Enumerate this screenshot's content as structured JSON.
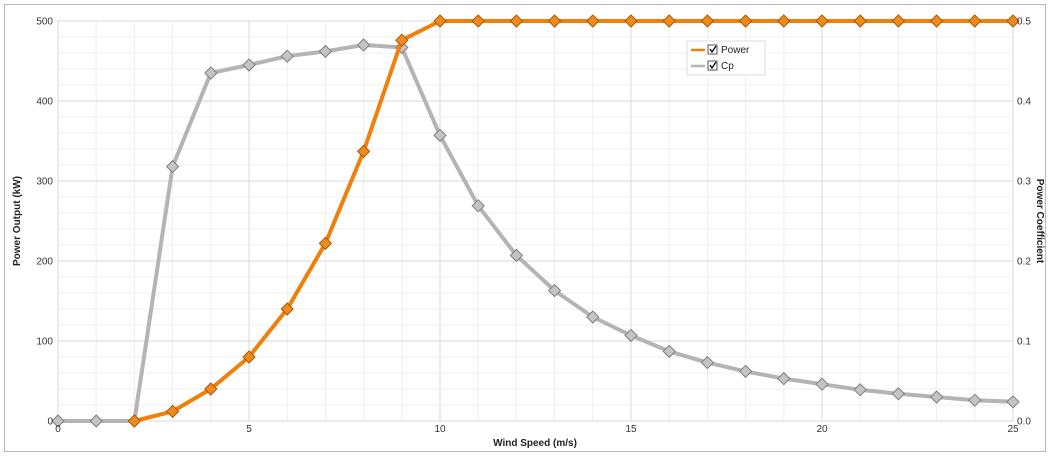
{
  "chart_data": {
    "type": "line",
    "xlabel": "Wind Speed (m/s)",
    "ylabel": "Power Output (kW)",
    "y2label": "Power Coefficient",
    "xlim": [
      0,
      25
    ],
    "ylim": [
      0,
      500
    ],
    "y2lim": [
      0,
      0.5
    ],
    "xticks": [
      "0",
      "5",
      "10",
      "15",
      "20",
      "25"
    ],
    "yticks": [
      "0",
      "100",
      "200",
      "300",
      "400",
      "500"
    ],
    "y2ticks": [
      "0.0",
      "0.1",
      "0.2",
      "0.3",
      "0.4",
      "0.5"
    ],
    "grid": true,
    "legend_position": "top-right",
    "series": [
      {
        "name": "Power",
        "axis": "left",
        "color": "#f0800a",
        "checked": true,
        "x": [
          2,
          3,
          4,
          5,
          6,
          7,
          8,
          9,
          10,
          11,
          12,
          13,
          14,
          15,
          16,
          17,
          18,
          19,
          20,
          21,
          22,
          23,
          24,
          25
        ],
        "values": [
          0,
          12,
          40,
          80,
          140,
          222,
          337,
          476,
          500,
          500,
          500,
          500,
          500,
          500,
          500,
          500,
          500,
          500,
          500,
          500,
          500,
          500,
          500,
          500
        ]
      },
      {
        "name": "Cp",
        "axis": "right",
        "color": "#b4b4b4",
        "checked": true,
        "x": [
          0,
          1,
          2,
          3,
          4,
          5,
          6,
          7,
          8,
          9,
          10,
          11,
          12,
          13,
          14,
          15,
          16,
          17,
          18,
          19,
          20,
          21,
          22,
          23,
          24,
          25
        ],
        "values": [
          0,
          0,
          0,
          0.318,
          0.435,
          0.445,
          0.456,
          0.462,
          0.47,
          0.467,
          0.357,
          0.269,
          0.207,
          0.163,
          0.13,
          0.107,
          0.087,
          0.073,
          0.062,
          0.053,
          0.046,
          0.039,
          0.034,
          0.03,
          0.026,
          0.024
        ]
      }
    ]
  }
}
